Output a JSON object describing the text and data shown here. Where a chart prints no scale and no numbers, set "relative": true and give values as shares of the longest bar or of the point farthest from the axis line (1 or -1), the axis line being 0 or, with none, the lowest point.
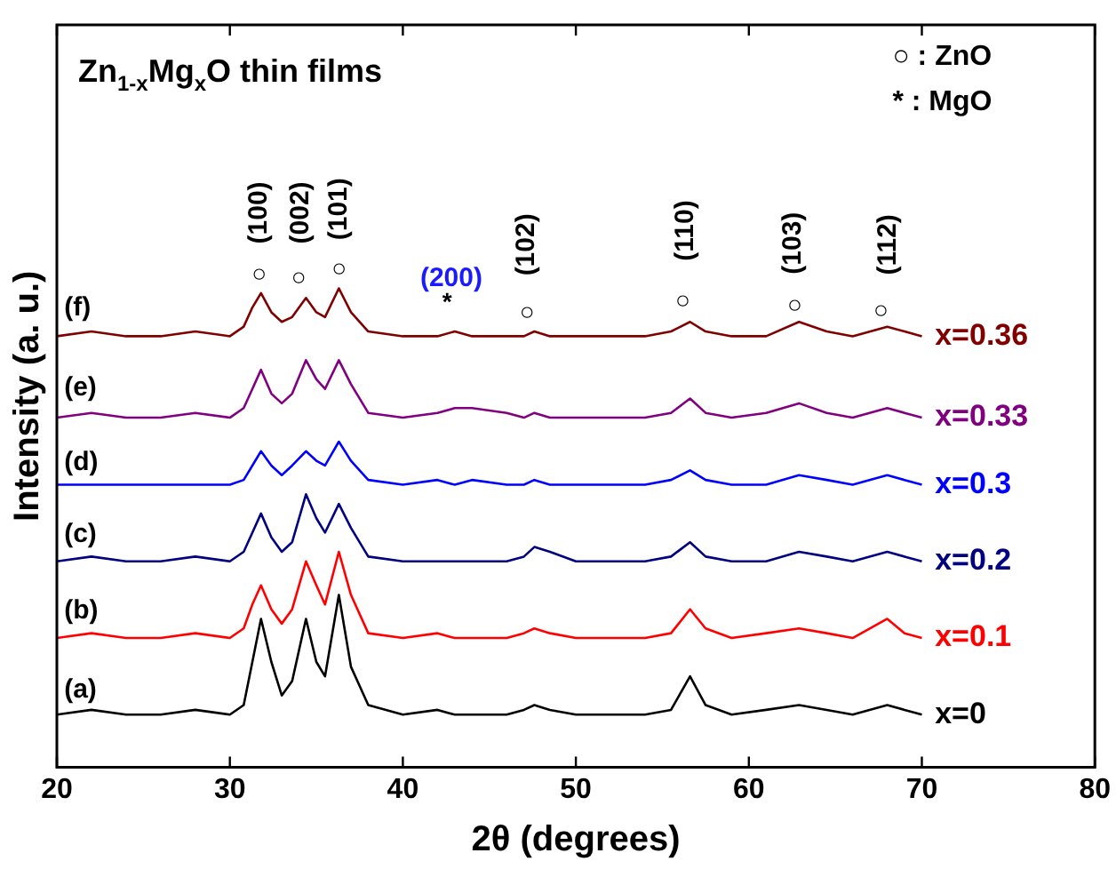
{
  "chart_data": {
    "type": "line",
    "title": "Zn$_{1-x}$Mg$_{x}$O thin films",
    "xlabel": "2θ (degrees)",
    "ylabel": "Intensity (a. u.)",
    "relative": true,
    "xlim": [
      20,
      80
    ],
    "xticks": [
      20,
      30,
      40,
      50,
      60,
      70,
      80
    ],
    "x": [
      20,
      22,
      24,
      26,
      28,
      30,
      30.8,
      31.3,
      31.8,
      32.4,
      33.0,
      33.6,
      34.4,
      35.0,
      35.5,
      36.3,
      37.0,
      38.0,
      40,
      42,
      43,
      44,
      46,
      47,
      47.6,
      48.5,
      50,
      52,
      54,
      55.5,
      56.6,
      57.5,
      59,
      61,
      62.9,
      64.5,
      66,
      68,
      69,
      70
    ],
    "series": [
      {
        "name": "x=0",
        "color": "#000000",
        "values": [
          0.11,
          0.12,
          0.11,
          0.11,
          0.12,
          0.11,
          0.13,
          0.22,
          0.31,
          0.22,
          0.15,
          0.18,
          0.31,
          0.22,
          0.19,
          0.36,
          0.21,
          0.13,
          0.11,
          0.12,
          0.11,
          0.11,
          0.11,
          0.12,
          0.13,
          0.12,
          0.11,
          0.11,
          0.11,
          0.12,
          0.19,
          0.13,
          0.11,
          0.12,
          0.13,
          0.12,
          0.11,
          0.13,
          0.12,
          0.11
        ]
      },
      {
        "name": "x=0.1",
        "color": "#ff0000",
        "values": [
          0.27,
          0.28,
          0.27,
          0.27,
          0.28,
          0.27,
          0.29,
          0.34,
          0.38,
          0.33,
          0.3,
          0.33,
          0.43,
          0.38,
          0.34,
          0.45,
          0.36,
          0.28,
          0.27,
          0.28,
          0.27,
          0.27,
          0.27,
          0.28,
          0.29,
          0.28,
          0.27,
          0.27,
          0.27,
          0.28,
          0.33,
          0.29,
          0.27,
          0.28,
          0.29,
          0.28,
          0.27,
          0.31,
          0.28,
          0.27
        ]
      },
      {
        "name": "x=0.2",
        "color": "#000080",
        "values": [
          0.43,
          0.44,
          0.43,
          0.43,
          0.44,
          0.43,
          0.45,
          0.49,
          0.53,
          0.48,
          0.45,
          0.47,
          0.57,
          0.52,
          0.49,
          0.55,
          0.5,
          0.44,
          0.43,
          0.43,
          0.43,
          0.43,
          0.43,
          0.44,
          0.46,
          0.45,
          0.43,
          0.43,
          0.43,
          0.44,
          0.47,
          0.44,
          0.43,
          0.43,
          0.45,
          0.44,
          0.43,
          0.45,
          0.44,
          0.43
        ]
      },
      {
        "name": "x=0.3",
        "color": "#0000ff",
        "values": [
          0.59,
          0.59,
          0.59,
          0.59,
          0.59,
          0.59,
          0.6,
          0.63,
          0.66,
          0.63,
          0.61,
          0.63,
          0.66,
          0.64,
          0.63,
          0.68,
          0.64,
          0.6,
          0.59,
          0.6,
          0.59,
          0.6,
          0.59,
          0.59,
          0.6,
          0.59,
          0.59,
          0.59,
          0.59,
          0.6,
          0.62,
          0.6,
          0.59,
          0.59,
          0.61,
          0.6,
          0.59,
          0.61,
          0.6,
          0.59
        ]
      },
      {
        "name": "x=0.33",
        "color": "#800080",
        "values": [
          0.73,
          0.74,
          0.73,
          0.73,
          0.74,
          0.73,
          0.75,
          0.79,
          0.83,
          0.78,
          0.76,
          0.78,
          0.85,
          0.81,
          0.79,
          0.85,
          0.8,
          0.74,
          0.73,
          0.74,
          0.75,
          0.75,
          0.74,
          0.73,
          0.74,
          0.73,
          0.73,
          0.73,
          0.73,
          0.74,
          0.77,
          0.74,
          0.73,
          0.74,
          0.76,
          0.74,
          0.73,
          0.75,
          0.74,
          0.73
        ]
      },
      {
        "name": "x=0.36",
        "color": "#800000",
        "values": [
          0.9,
          0.91,
          0.9,
          0.9,
          0.91,
          0.9,
          0.92,
          0.96,
          0.99,
          0.95,
          0.93,
          0.94,
          0.98,
          0.95,
          0.94,
          1.0,
          0.95,
          0.91,
          0.9,
          0.9,
          0.91,
          0.9,
          0.9,
          0.9,
          0.91,
          0.9,
          0.9,
          0.9,
          0.9,
          0.91,
          0.93,
          0.91,
          0.9,
          0.9,
          0.93,
          0.91,
          0.9,
          0.92,
          0.91,
          0.9
        ]
      }
    ],
    "annotations": [
      "○ : ZnO",
      "* : MgO",
      "(a)",
      "(b)",
      "(c)",
      "(d)",
      "(e)",
      "(f)",
      "(100)",
      "(002)",
      "(101)",
      "(102)",
      "(110)",
      "(103)",
      "(112)",
      "(200)",
      "○",
      "○",
      "○",
      "○",
      "○",
      "○",
      "○",
      "*"
    ]
  }
}
